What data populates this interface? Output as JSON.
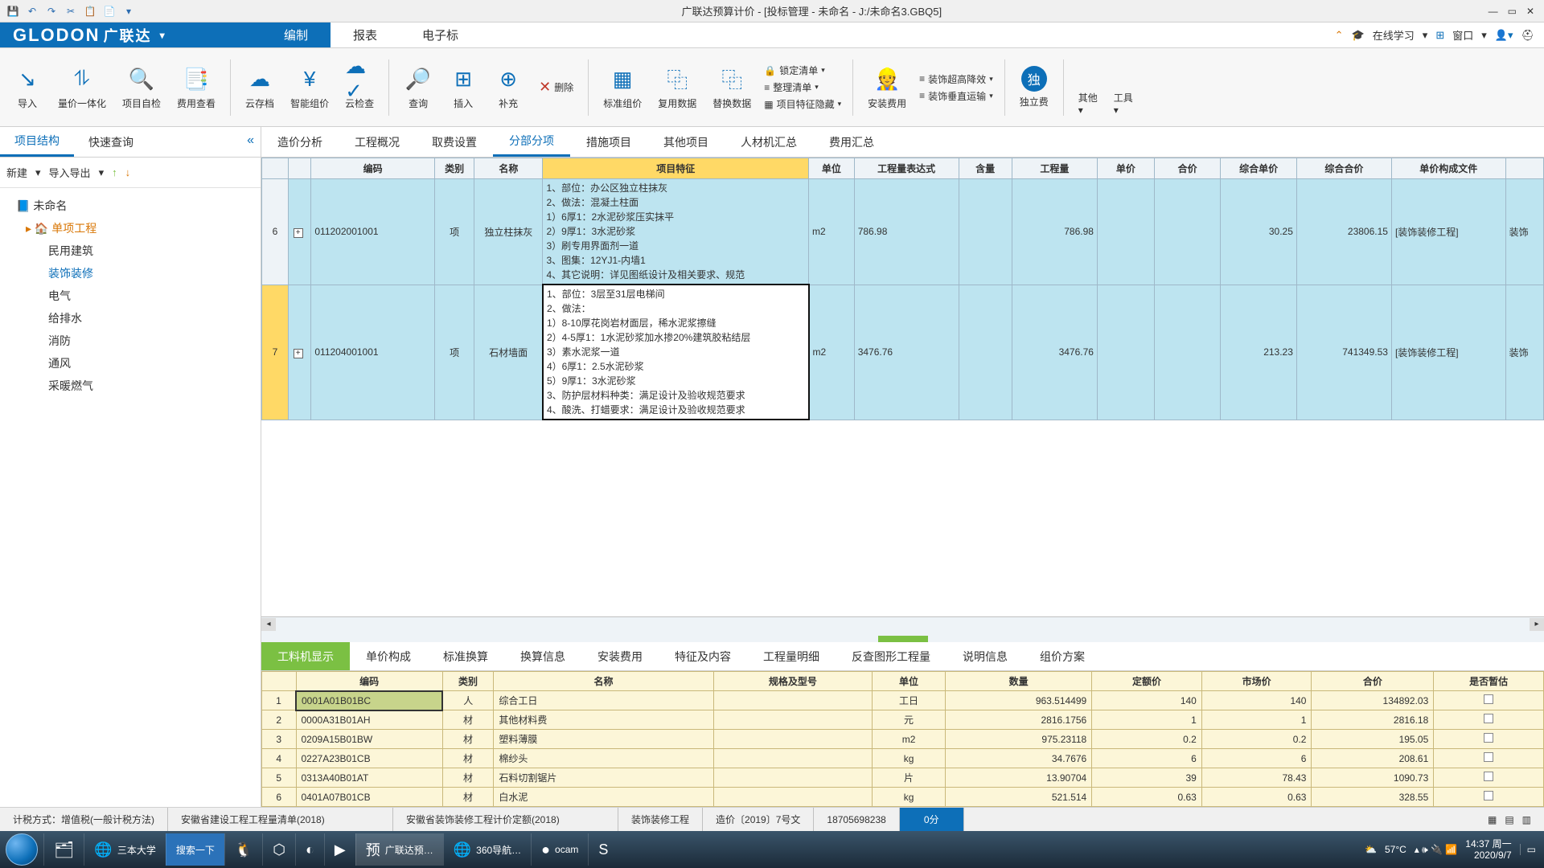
{
  "title": "广联达预算计价 - [投标管理 - 未命名 - J:/未命名3.GBQ5]",
  "logo_en": "GLODON",
  "logo_cn": "广联达",
  "menu": {
    "tabs": [
      "编制",
      "报表",
      "电子标"
    ],
    "active": 0,
    "right": {
      "study": "在线学习",
      "window": "窗口"
    }
  },
  "ribbon": {
    "items": [
      {
        "icon": "↘",
        "label": "导入",
        "name": "import-button"
      },
      {
        "icon": "⥮",
        "label": "量价一体化",
        "name": "integrate-button"
      },
      {
        "icon": "🔍",
        "label": "项目自检",
        "name": "selfcheck-button"
      },
      {
        "icon": "📑",
        "label": "费用查看",
        "name": "fee-view-button"
      }
    ],
    "cloud": [
      {
        "icon": "☁",
        "label": "云存档",
        "name": "cloud-save-button"
      },
      {
        "icon": "¥",
        "label": "智能组价",
        "name": "smart-price-button"
      },
      {
        "icon": "☁✓",
        "label": "云检查",
        "name": "cloud-check-button"
      }
    ],
    "mid": [
      {
        "icon": "🔎",
        "label": "查询",
        "name": "query-button"
      },
      {
        "icon": "⊞",
        "label": "插入",
        "name": "insert-button"
      },
      {
        "icon": "⊕",
        "label": "补充",
        "name": "supplement-button"
      }
    ],
    "delete": "删除",
    "data": [
      {
        "icon": "▦",
        "label": "标准组价",
        "name": "std-price-button"
      },
      {
        "icon": "⿻",
        "label": "复用数据",
        "name": "reuse-button"
      },
      {
        "icon": "⿻",
        "label": "替换数据",
        "name": "replace-button"
      }
    ],
    "lock": [
      {
        "icon": "🔒",
        "label": "锁定清单",
        "name": "lock-list"
      },
      {
        "icon": "≡",
        "label": "整理清单",
        "name": "sort-list"
      },
      {
        "icon": "▦",
        "label": "项目特征隐藏",
        "name": "hide-feature"
      }
    ],
    "install": {
      "icon": "👷",
      "label": "安装费用",
      "name": "install-fee-button"
    },
    "deco": [
      {
        "icon": "≡",
        "label": "装饰超高降效",
        "name": "deco-high"
      },
      {
        "icon": "≡",
        "label": "装饰垂直运输",
        "name": "deco-vert"
      }
    ],
    "indep": {
      "icon": "独",
      "label": "独立费",
      "name": "indep-fee-button"
    },
    "other": {
      "label": "其他",
      "name": "other-button"
    },
    "tool": {
      "label": "工具",
      "name": "tool-button"
    }
  },
  "left": {
    "tabs": [
      "项目结构",
      "快速查询"
    ],
    "toolbar": {
      "new": "新建",
      "io": "导入导出"
    },
    "tree": {
      "root": "未命名",
      "proj": "单项工程",
      "leaves": [
        "民用建筑",
        "装饰装修",
        "电气",
        "给排水",
        "消防",
        "通风",
        "采暖燃气"
      ],
      "selected": 1
    }
  },
  "rp_tabs": [
    "造价分析",
    "工程概况",
    "取费设置",
    "分部分项",
    "措施项目",
    "其他项目",
    "人材机汇总",
    "费用汇总"
  ],
  "rp_active": 3,
  "grid": {
    "cols": [
      "",
      "",
      "编码",
      "类别",
      "名称",
      "项目特征",
      "单位",
      "工程量表达式",
      "含量",
      "工程量",
      "单价",
      "合价",
      "综合单价",
      "综合合价",
      "单价构成文件",
      ""
    ],
    "rows": [
      {
        "n": "6",
        "code": "011202001001",
        "cat": "项",
        "name": "独立柱抹灰",
        "feat": "1、部位：办公区独立柱抹灰\n2、做法：混凝土柱面\n1）6厚1：2水泥砂浆压实抹平\n2）9厚1：3水泥砂浆\n3）刷专用界面剂一道\n3、图集：12YJ1-内墙1\n4、其它说明：详见图纸设计及相关要求、规范",
        "unit": "m2",
        "expr": "786.98",
        "qty": "786.98",
        "cprice": "30.25",
        "ctotal": "23806.15",
        "file": "[装饰装修工程]",
        "tail": "装饰"
      },
      {
        "n": "7",
        "code": "011204001001",
        "cat": "项",
        "name": "石材墙面",
        "feat": "1、部位：3层至31层电梯间\n2、做法：\n1）8-10厚花岗岩材面层，稀水泥浆擦缝\n2）4-5厚1：1水泥砂浆加水掺20%建筑胶粘结层\n3）素水泥浆一道\n4）6厚1：2.5水泥砂浆\n5）9厚1：3水泥砂浆\n3、防护层材料种类：满足设计及验收规范要求\n4、酸洗、打蜡要求：满足设计及验收规范要求",
        "unit": "m2",
        "expr": "3476.76",
        "qty": "3476.76",
        "cprice": "213.23",
        "ctotal": "741349.53",
        "file": "[装饰装修工程]",
        "tail": "装饰"
      }
    ]
  },
  "bot_tabs": [
    "工料机显示",
    "单价构成",
    "标准换算",
    "换算信息",
    "安装费用",
    "特征及内容",
    "工程量明细",
    "反查图形工程量",
    "说明信息",
    "组价方案"
  ],
  "bot_active": 0,
  "bgrid": {
    "cols": [
      "",
      "编码",
      "类别",
      "名称",
      "规格及型号",
      "单位",
      "数量",
      "定额价",
      "市场价",
      "合价",
      "是否暂估"
    ],
    "rows": [
      {
        "n": "1",
        "code": "0001A01B01BC",
        "cat": "人",
        "name": "综合工日",
        "spec": "",
        "unit": "工日",
        "qty": "963.514499",
        "dp": "140",
        "mp": "140",
        "tot": "134892.03"
      },
      {
        "n": "2",
        "code": "0000A31B01AH",
        "cat": "材",
        "name": "其他材料费",
        "spec": "",
        "unit": "元",
        "qty": "2816.1756",
        "dp": "1",
        "mp": "1",
        "tot": "2816.18"
      },
      {
        "n": "3",
        "code": "0209A15B01BW",
        "cat": "材",
        "name": "塑料薄膜",
        "spec": "",
        "unit": "m2",
        "qty": "975.23118",
        "dp": "0.2",
        "mp": "0.2",
        "tot": "195.05"
      },
      {
        "n": "4",
        "code": "0227A23B01CB",
        "cat": "材",
        "name": "棉纱头",
        "spec": "",
        "unit": "kg",
        "qty": "34.7676",
        "dp": "6",
        "mp": "6",
        "tot": "208.61"
      },
      {
        "n": "5",
        "code": "0313A40B01AT",
        "cat": "材",
        "name": "石料切割锯片",
        "spec": "",
        "unit": "片",
        "qty": "13.90704",
        "dp": "39",
        "mp": "78.43",
        "tot": "1090.73"
      },
      {
        "n": "6",
        "code": "0401A07B01CB",
        "cat": "材",
        "name": "白水泥",
        "spec": "",
        "unit": "kg",
        "qty": "521.514",
        "dp": "0.63",
        "mp": "0.63",
        "tot": "328.55"
      }
    ]
  },
  "status": {
    "tax": "计税方式：增值税(一般计税方法)",
    "s1": "安徽省建设工程工程量清单(2018)",
    "s2": "安徽省装饰装修工程计价定额(2018)",
    "s3": "装饰装修工程",
    "s4": "造价〔2019〕7号文",
    "phone": "18705698238",
    "score": "0分"
  },
  "taskbar": {
    "items": [
      {
        "icon": "🌐",
        "label": "三本大学",
        "name": "tb-browser"
      },
      {
        "icon": "",
        "label": "搜索一下",
        "name": "tb-search",
        "cls": "active",
        "bg": "#2b72b9"
      },
      {
        "icon": "🐧",
        "label": "",
        "name": "tb-qq"
      },
      {
        "icon": "⬡",
        "label": "",
        "name": "tb-baidu"
      },
      {
        "icon": "◐",
        "label": "",
        "name": "tb-app1"
      },
      {
        "icon": "▶",
        "label": "",
        "name": "tb-video"
      },
      {
        "icon": "预",
        "label": "广联达预…",
        "name": "tb-glodon",
        "cls": "active"
      },
      {
        "icon": "🌐",
        "label": "360导航…",
        "name": "tb-360"
      },
      {
        "icon": "●",
        "label": "ocam",
        "name": "tb-ocam"
      },
      {
        "icon": "S",
        "label": "",
        "name": "tb-s"
      }
    ],
    "temp": "57°C",
    "time": "14:37",
    "date": "2020/9/7",
    "day": "周一"
  }
}
